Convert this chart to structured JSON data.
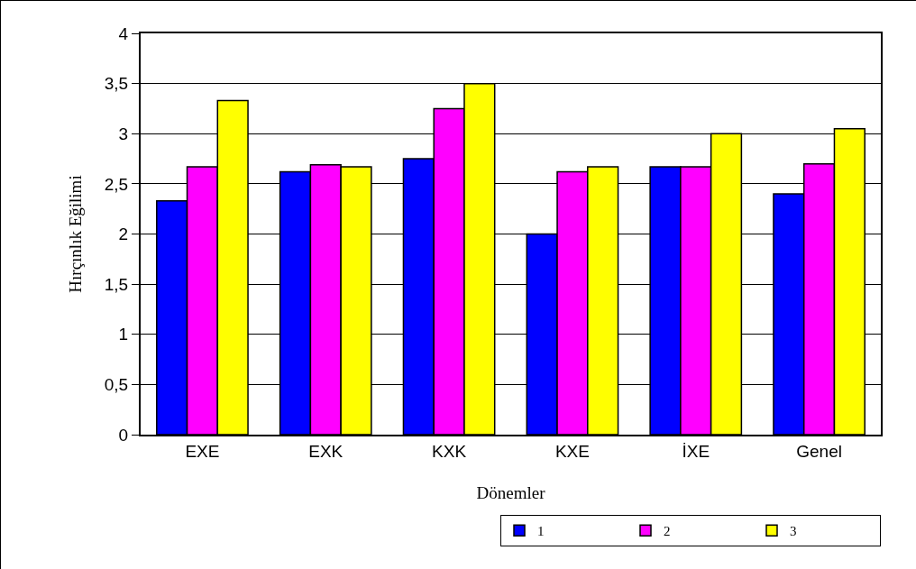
{
  "chart_data": {
    "type": "bar",
    "xlabel": "Dönemler",
    "ylabel": "Hırçınlık Eğilimi",
    "categories": [
      "EXE",
      "EXK",
      "KXK",
      "KXE",
      "İXE",
      "Genel"
    ],
    "series": [
      {
        "name": "1",
        "color": "#0000ff",
        "values": [
          2.33,
          2.62,
          2.75,
          2.0,
          2.67,
          2.4
        ]
      },
      {
        "name": "2",
        "color": "#ff00ff",
        "values": [
          2.67,
          2.69,
          3.25,
          2.62,
          2.67,
          2.7
        ]
      },
      {
        "name": "3",
        "color": "#ffff00",
        "values": [
          3.33,
          2.67,
          3.5,
          2.67,
          3.0,
          3.05
        ]
      }
    ],
    "ylim": [
      0,
      4
    ],
    "yticks": [
      0,
      {
        "value": 0.5,
        "label": "0,5"
      },
      1,
      {
        "value": 1.5,
        "label": "1,5"
      },
      2,
      {
        "value": 2.5,
        "label": "2,5"
      },
      3,
      {
        "value": 3.5,
        "label": "3,5"
      },
      4
    ],
    "grid": "y",
    "legend": "bottom right"
  }
}
